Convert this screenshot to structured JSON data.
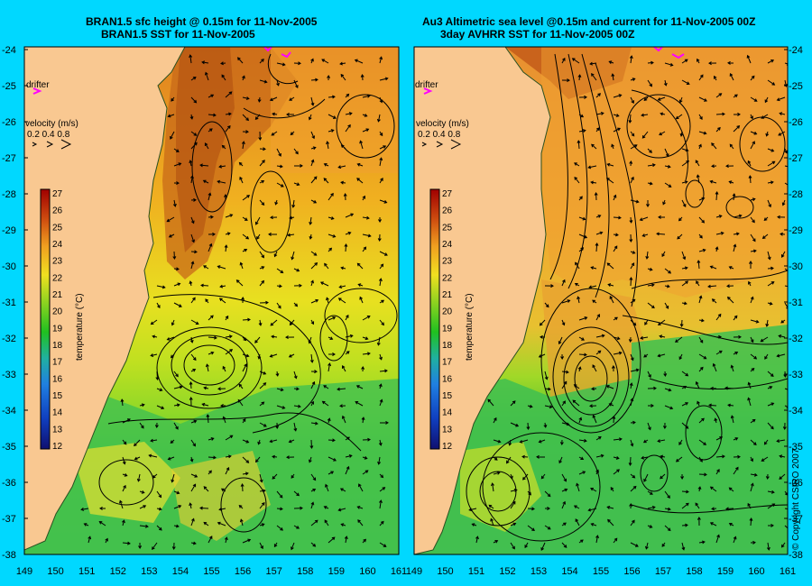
{
  "left_panel": {
    "title_line1": "BRAN1.5 sfc height @ 0.15m for 11-Nov-2005",
    "title_line2": "BRAN1.5 SST for 11-Nov-2005"
  },
  "right_panel": {
    "title_line1": "Au3 Altimetric sea level  @0.15m and current for 11-Nov-2005 00Z",
    "title_line2": "3day AVHRR SST for 11-Nov-2005 00Z"
  },
  "lat_labels": [
    "-24",
    "-25",
    "-26",
    "-27",
    "-28",
    "-29",
    "-30",
    "-31",
    "-32",
    "-33",
    "-34",
    "-35",
    "-36",
    "-37",
    "-38"
  ],
  "lon_labels": [
    "149",
    "150",
    "151",
    "152",
    "153",
    "154",
    "155",
    "156",
    "157",
    "158",
    "159",
    "160",
    "161"
  ],
  "drifter_label": "drifter",
  "velocity_legend": {
    "title": "velocity (m/s)",
    "values": "0.2 0.4 0.8"
  },
  "colorbar": {
    "labels": [
      "27",
      "26",
      "25",
      "24",
      "23",
      "22",
      "21",
      "20",
      "19",
      "18",
      "17",
      "16",
      "15",
      "14",
      "13",
      "12"
    ],
    "axis_label": "temperature (°C)"
  },
  "copyright": "© Copyright CSIRO 2007",
  "colors": {
    "background": "#00d8ff",
    "land": "#f9c891",
    "warm": "#d06010",
    "mid": "#f0c020",
    "cool": "#40c030",
    "drifter": "#ff00ff"
  }
}
